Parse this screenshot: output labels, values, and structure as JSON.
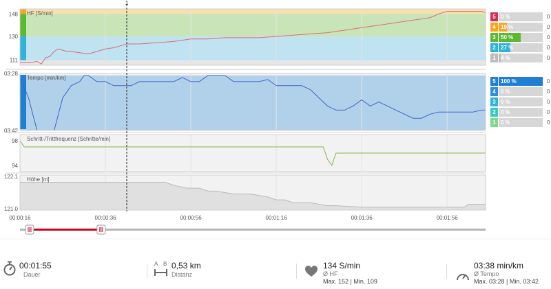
{
  "time_axis": {
    "start_sec": 16,
    "end_sec": 125,
    "labels": [
      {
        "sec": 16,
        "text": "00:00:16"
      },
      {
        "sec": 36,
        "text": "00:00:36"
      },
      {
        "sec": 56,
        "text": "00:00:56"
      },
      {
        "sec": 76,
        "text": "00:01:16"
      },
      {
        "sec": 96,
        "text": "00:01:36"
      },
      {
        "sec": 116,
        "text": "00:01:56"
      }
    ]
  },
  "marker": {
    "label": "1",
    "sec": 41
  },
  "range_slider": {
    "start_sec": 16,
    "end_sec": 35
  },
  "chart_data": [
    {
      "type": "line",
      "title": "HF [S/min]",
      "ylim": [
        107,
        152
      ],
      "ticks": [
        {
          "value": 148,
          "text": "148"
        },
        {
          "value": 130,
          "text": "130"
        },
        {
          "value": 111,
          "text": "111"
        }
      ],
      "zone_bands": [
        {
          "from": 107,
          "to": 111,
          "color": "#e6e6e6"
        },
        {
          "from": 111,
          "to": 130,
          "color": "#bfe3f0"
        },
        {
          "from": 130,
          "to": 148,
          "color": "#c9e5b8"
        },
        {
          "from": 148,
          "to": 152,
          "color": "#f7e0b0"
        }
      ],
      "color": "#d96a78",
      "x": [
        16,
        18,
        20,
        21,
        22,
        23,
        24,
        25,
        26,
        27,
        28,
        30,
        32,
        34,
        36,
        38,
        40,
        41,
        44,
        48,
        52,
        56,
        60,
        64,
        68,
        72,
        76,
        80,
        84,
        88,
        92,
        96,
        100,
        104,
        108,
        112,
        114,
        116,
        118,
        120,
        122,
        124,
        125
      ],
      "values": [
        109,
        109,
        110,
        108,
        113,
        114,
        118,
        120,
        119,
        118,
        118,
        117,
        116,
        118,
        120,
        121,
        123,
        124,
        124,
        125,
        126,
        128,
        128,
        129,
        129,
        129,
        130,
        131,
        132,
        133,
        135,
        137,
        139,
        141,
        143,
        145,
        148,
        150,
        150,
        150,
        150,
        150,
        149
      ]
    },
    {
      "type": "line",
      "title": "Tempo [min/km]",
      "ylim": [
        222,
        208
      ],
      "ticks": [
        {
          "value": 208,
          "text": "03:28"
        },
        {
          "value": 222,
          "text": "03:42"
        }
      ],
      "zone_bands": [
        {
          "from": 222,
          "to": 208.5,
          "color": "#b1d0ea"
        }
      ],
      "color": "#3d63c9",
      "x": [
        16,
        18,
        20,
        22,
        24,
        26,
        28,
        30,
        31,
        32,
        34,
        36,
        38,
        40,
        42,
        44,
        46,
        48,
        50,
        52,
        54,
        56,
        58,
        60,
        62,
        64,
        66,
        68,
        70,
        72,
        74,
        76,
        78,
        80,
        82,
        84,
        86,
        88,
        90,
        92,
        94,
        96,
        98,
        100,
        102,
        104,
        106,
        108,
        110,
        112,
        114,
        116,
        118,
        120,
        122,
        124,
        125
      ],
      "values": [
        209,
        214,
        222,
        222,
        222,
        214,
        211,
        210,
        208.5,
        208.5,
        210,
        210,
        211,
        211,
        211,
        210,
        210,
        210,
        210,
        210,
        209,
        210,
        210,
        208.5,
        208.5,
        208.5,
        210,
        210,
        210,
        210,
        209.5,
        211,
        211,
        211,
        211,
        212,
        214,
        216,
        217,
        217,
        216,
        214.5,
        216,
        215,
        216,
        217,
        218,
        219,
        219,
        218,
        217.5,
        217.5,
        217.5,
        217.5,
        217.5,
        217,
        217
      ]
    },
    {
      "type": "line",
      "title": "Schritt-/Trittfrequenz [Schritte/min]",
      "ylim": [
        93,
        99
      ],
      "ticks": [
        {
          "value": 98,
          "text": "98"
        },
        {
          "value": 94,
          "text": "94"
        }
      ],
      "color": "#83b453",
      "x": [
        16,
        17,
        18,
        20,
        40,
        60,
        80,
        87,
        88,
        89,
        90,
        91,
        100,
        110,
        125
      ],
      "values": [
        98,
        97,
        97,
        97,
        97,
        97,
        97,
        97,
        95,
        94,
        96,
        96,
        96,
        96,
        96
      ]
    },
    {
      "type": "area",
      "title": "Höhe [m]",
      "ylim": [
        120.95,
        122.15
      ],
      "ticks": [
        {
          "value": 122.1,
          "text": "122.1"
        },
        {
          "value": 121.0,
          "text": "121.0"
        }
      ],
      "color": "#b9b9b9",
      "fill": "#e0e0e0",
      "x": [
        16,
        20,
        30,
        50,
        52,
        55,
        58,
        60,
        62,
        66,
        70,
        74,
        76,
        78,
        80,
        84,
        88,
        90,
        96,
        100,
        110,
        116,
        120,
        121,
        125
      ],
      "values": [
        121.9,
        121.9,
        121.9,
        121.9,
        121.8,
        121.7,
        121.7,
        121.6,
        121.6,
        121.5,
        121.5,
        121.4,
        121.3,
        121.3,
        121.2,
        121.2,
        121.1,
        121.1,
        121.05,
        121.05,
        121.05,
        121.05,
        121.05,
        121.15,
        121.15
      ]
    }
  ],
  "zones": {
    "hf": [
      {
        "n": "5",
        "pct": 0,
        "label": "0 %",
        "color": "#d62b52",
        "extra": "0"
      },
      {
        "n": "4",
        "pct": 19,
        "label": "19 %",
        "color": "#f5a623",
        "extra": "0"
      },
      {
        "n": "3",
        "pct": 50,
        "label": "50 %",
        "color": "#5cb932",
        "extra": "0"
      },
      {
        "n": "2",
        "pct": 27,
        "label": "27 %",
        "color": "#2fb3dd",
        "extra": "0"
      },
      {
        "n": "1",
        "pct": 4,
        "label": "4 %",
        "color": "#bdbdbd",
        "extra": "0"
      }
    ],
    "tempo": [
      {
        "n": "5",
        "pct": 100,
        "label": "100 %",
        "color": "#1f7fd4",
        "extra": "0"
      },
      {
        "n": "4",
        "pct": 0,
        "label": "0 %",
        "color": "#2d8ee0",
        "extra": "0"
      },
      {
        "n": "3",
        "pct": 0,
        "label": "0 %",
        "color": "#2fb3dd",
        "extra": "0"
      },
      {
        "n": "2",
        "pct": 0,
        "label": "0 %",
        "color": "#36c9c0",
        "extra": "0"
      },
      {
        "n": "1",
        "pct": 0,
        "label": "0 %",
        "color": "#7fd98a",
        "extra": "0"
      }
    ]
  },
  "stats": {
    "duration": {
      "value": "00:01:55",
      "label": "Dauer",
      "icon": "stopwatch-icon"
    },
    "distance": {
      "value": "0,53 km",
      "label": "Distanz",
      "icon": "distance-icon",
      "icon_a": "A",
      "icon_b": "B"
    },
    "hr": {
      "value": "134 S/min",
      "label": "Ø HF",
      "max_min": "Max. 152  |  Min. 109",
      "icon": "heart-icon"
    },
    "pace": {
      "value": "03:38 min/km",
      "label": "Ø Tempo",
      "max_min": "Max. 03:28  |  Min. 03:42",
      "icon": "speedometer-icon"
    }
  },
  "colors": {
    "panel_border": "#cfcfcf",
    "grid": "#e3e3e3",
    "panel_bg": "#f2f2f2",
    "slider_track": "#b5b5b5",
    "slider_range": "#d0021b",
    "icon": "#666666"
  }
}
